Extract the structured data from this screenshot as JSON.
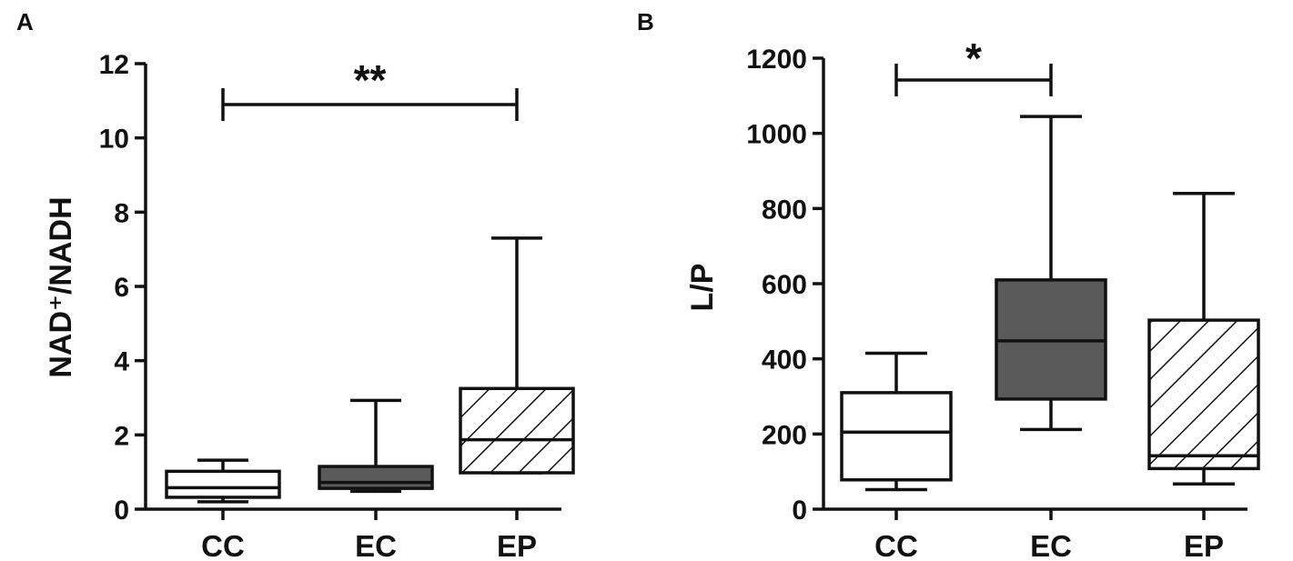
{
  "chart_data": [
    {
      "type": "boxplot",
      "panel_label": "A",
      "ylabel": "NAD⁺/NADH",
      "ylim": [
        0,
        12
      ],
      "yticks": [
        0,
        2,
        4,
        6,
        8,
        10,
        12
      ],
      "categories": [
        "CC",
        "EC",
        "EP"
      ],
      "boxes": [
        {
          "category": "CC",
          "min": 0.2,
          "q1": 0.32,
          "median": 0.58,
          "q3": 1.02,
          "max": 1.32,
          "fill": "#ffffff",
          "pattern": "none"
        },
        {
          "category": "EC",
          "min": 0.48,
          "q1": 0.56,
          "median": 0.72,
          "q3": 1.15,
          "max": 2.93,
          "fill": "#5a5a5a",
          "pattern": "none"
        },
        {
          "category": "EP",
          "min": 0.98,
          "q1": 0.98,
          "median": 1.87,
          "q3": 3.25,
          "max": 7.3,
          "fill": "#ffffff",
          "pattern": "hatch"
        }
      ],
      "significance": [
        {
          "from": "CC",
          "to": "EP",
          "label": "**"
        }
      ]
    },
    {
      "type": "boxplot",
      "panel_label": "B",
      "ylabel": "L/P",
      "ylim": [
        0,
        1200
      ],
      "yticks": [
        0,
        200,
        400,
        600,
        800,
        1000,
        1200
      ],
      "categories": [
        "CC",
        "EC",
        "EP"
      ],
      "boxes": [
        {
          "category": "CC",
          "min": 52,
          "q1": 78,
          "median": 205,
          "q3": 310,
          "max": 415,
          "fill": "#ffffff",
          "pattern": "none"
        },
        {
          "category": "EC",
          "min": 212,
          "q1": 293,
          "median": 448,
          "q3": 610,
          "max": 1045,
          "fill": "#5a5a5a",
          "pattern": "none"
        },
        {
          "category": "EP",
          "min": 67,
          "q1": 108,
          "median": 142,
          "q3": 503,
          "max": 840,
          "fill": "#ffffff",
          "pattern": "hatch"
        }
      ],
      "significance": [
        {
          "from": "CC",
          "to": "EC",
          "label": "*"
        }
      ]
    }
  ],
  "colors": {
    "stroke": "#111111",
    "dark_fill": "#5a5a5a",
    "background": "#ffffff"
  }
}
